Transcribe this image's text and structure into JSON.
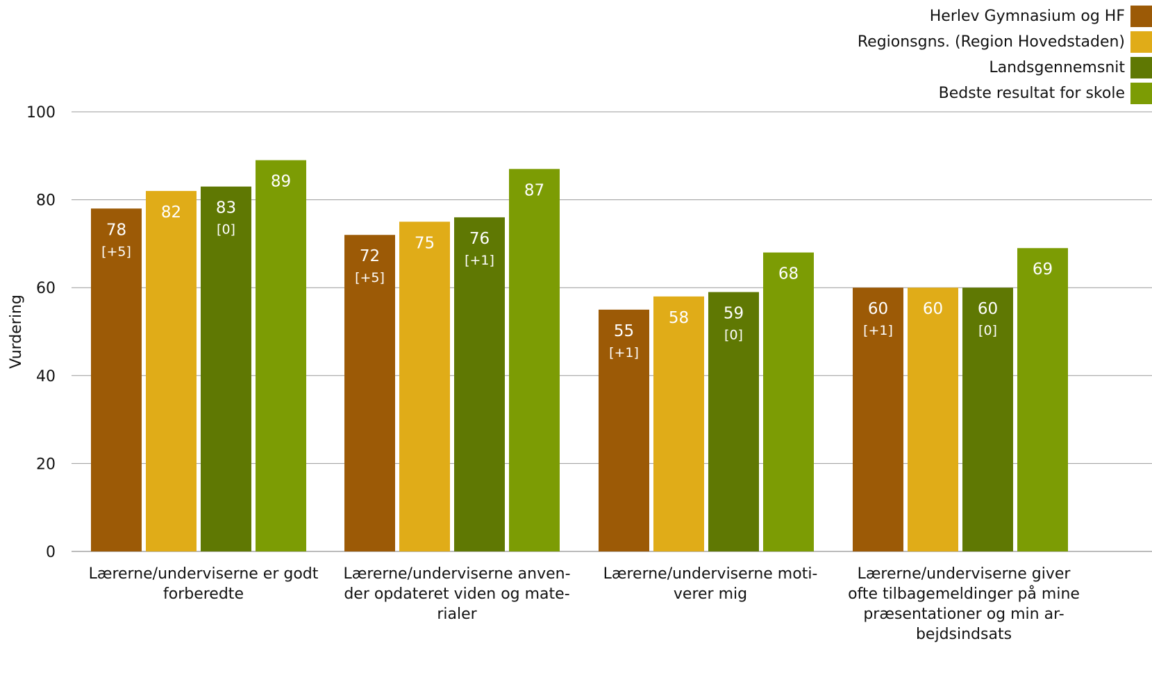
{
  "chart_data": {
    "type": "bar",
    "ylabel": "Vurdering",
    "ylim": [
      0,
      100
    ],
    "yticks": [
      0,
      20,
      40,
      60,
      80,
      100
    ],
    "grid": true,
    "legend_position": "top-right",
    "categories": [
      "Lærerne/underviserne er godt\nforberedte",
      "Lærerne/underviserne anven-\nder opdateret viden og mate-\nrialer",
      "Lærerne/underviserne moti-\nverer mig",
      "Lærerne/underviserne giver\nofte tilbagemeldinger på mine\npræsentationer og min ar-\nbejdsindsats"
    ],
    "series": [
      {
        "name": "Herlev Gymnasium og HF",
        "color": "#9c5a06",
        "values": [
          78,
          72,
          55,
          60
        ],
        "labels": [
          "78",
          "72",
          "55",
          "60"
        ],
        "sublabels": [
          "[+5]",
          "[+5]",
          "[+1]",
          "[+1]"
        ]
      },
      {
        "name": "Regionsgns. (Region Hovedstaden)",
        "color": "#e0ac18",
        "values": [
          82,
          75,
          58,
          60
        ],
        "labels": [
          "82",
          "75",
          "58",
          "60"
        ],
        "sublabels": [
          "",
          "",
          "",
          ""
        ]
      },
      {
        "name": "Landsgennemsnit",
        "color": "#5f7803",
        "values": [
          83,
          76,
          59,
          60
        ],
        "labels": [
          "83",
          "76",
          "59",
          "60"
        ],
        "sublabels": [
          "[0]",
          "[+1]",
          "[0]",
          "[0]"
        ]
      },
      {
        "name": "Bedste resultat for skole",
        "color": "#7c9c04",
        "values": [
          89,
          87,
          68,
          69
        ],
        "labels": [
          "89",
          "87",
          "68",
          "69"
        ],
        "sublabels": [
          "",
          "",
          "",
          ""
        ]
      }
    ]
  }
}
